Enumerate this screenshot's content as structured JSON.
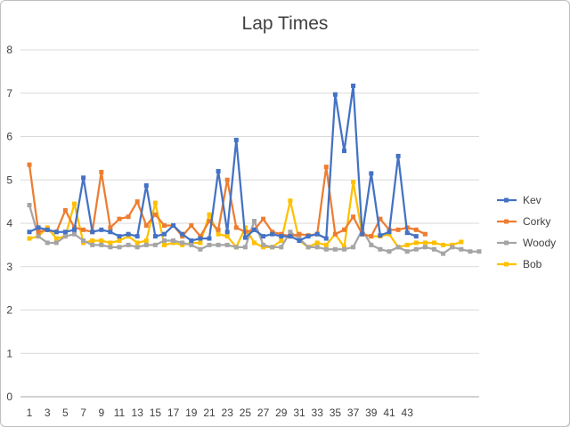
{
  "chart_data": {
    "type": "line",
    "title": "Lap Times",
    "xlabel": "",
    "ylabel": "",
    "ylim": [
      0,
      8
    ],
    "yticks": [
      0,
      1,
      2,
      3,
      4,
      5,
      6,
      7,
      8
    ],
    "xlim": [
      1,
      51
    ],
    "xticks": [
      1,
      3,
      5,
      7,
      9,
      11,
      13,
      15,
      17,
      19,
      21,
      23,
      25,
      27,
      29,
      31,
      33,
      35,
      37,
      39,
      41,
      43
    ],
    "grid": "horizontal",
    "legend": "right",
    "series": [
      {
        "name": "Kev",
        "color": "#4472C4",
        "marker": "square",
        "values": [
          3.8,
          3.9,
          3.85,
          3.8,
          3.8,
          3.85,
          5.05,
          3.8,
          3.85,
          3.8,
          3.7,
          3.75,
          3.7,
          4.87,
          3.7,
          3.75,
          3.95,
          3.75,
          3.6,
          3.65,
          3.65,
          5.2,
          3.8,
          5.92,
          3.67,
          3.85,
          3.7,
          3.75,
          3.7,
          3.7,
          3.6,
          3.7,
          3.75,
          3.65,
          6.97,
          5.67,
          7.17,
          3.75,
          5.15,
          3.72,
          3.8,
          5.55,
          3.78,
          3.7
        ]
      },
      {
        "name": "Corky",
        "color": "#ED7D31",
        "marker": "square",
        "values": [
          5.35,
          3.8,
          3.85,
          3.8,
          4.3,
          3.9,
          3.85,
          3.8,
          5.18,
          3.9,
          4.1,
          4.15,
          4.5,
          3.95,
          4.2,
          3.95,
          3.95,
          3.7,
          3.95,
          3.7,
          4.05,
          3.85,
          5.0,
          3.9,
          3.8,
          3.85,
          4.1,
          3.8,
          3.75,
          3.7,
          3.75,
          3.72,
          3.75,
          5.3,
          3.75,
          3.85,
          4.15,
          3.75,
          3.7,
          4.1,
          3.85,
          3.85,
          3.9,
          3.85,
          3.75
        ]
      },
      {
        "name": "Woody",
        "color": "#A5A5A5",
        "marker": "square",
        "values": [
          4.42,
          3.7,
          3.55,
          3.55,
          3.7,
          3.75,
          3.6,
          3.5,
          3.5,
          3.45,
          3.45,
          3.5,
          3.45,
          3.5,
          3.5,
          3.6,
          3.6,
          3.55,
          3.5,
          3.4,
          3.5,
          3.5,
          3.5,
          3.45,
          3.45,
          4.05,
          3.5,
          3.45,
          3.45,
          3.8,
          3.65,
          3.45,
          3.45,
          3.4,
          3.4,
          3.4,
          3.45,
          3.85,
          3.5,
          3.4,
          3.35,
          3.45,
          3.35,
          3.4,
          3.45,
          3.4,
          3.3,
          3.45,
          3.4,
          3.35,
          3.35
        ]
      },
      {
        "name": "Bob",
        "color": "#FFC000",
        "marker": "square",
        "values": [
          3.65,
          3.7,
          3.9,
          3.65,
          3.7,
          4.45,
          3.55,
          3.6,
          3.6,
          3.55,
          3.6,
          3.7,
          3.55,
          3.6,
          4.47,
          3.5,
          3.55,
          3.5,
          3.55,
          3.55,
          4.2,
          3.75,
          3.7,
          3.45,
          3.9,
          3.55,
          3.45,
          3.45,
          3.6,
          4.52,
          3.6,
          3.45,
          3.55,
          3.5,
          3.75,
          3.45,
          4.95,
          3.75,
          3.7,
          3.7,
          3.75,
          3.45,
          3.5,
          3.55,
          3.55,
          3.55,
          3.5,
          3.5,
          3.57
        ]
      }
    ]
  }
}
